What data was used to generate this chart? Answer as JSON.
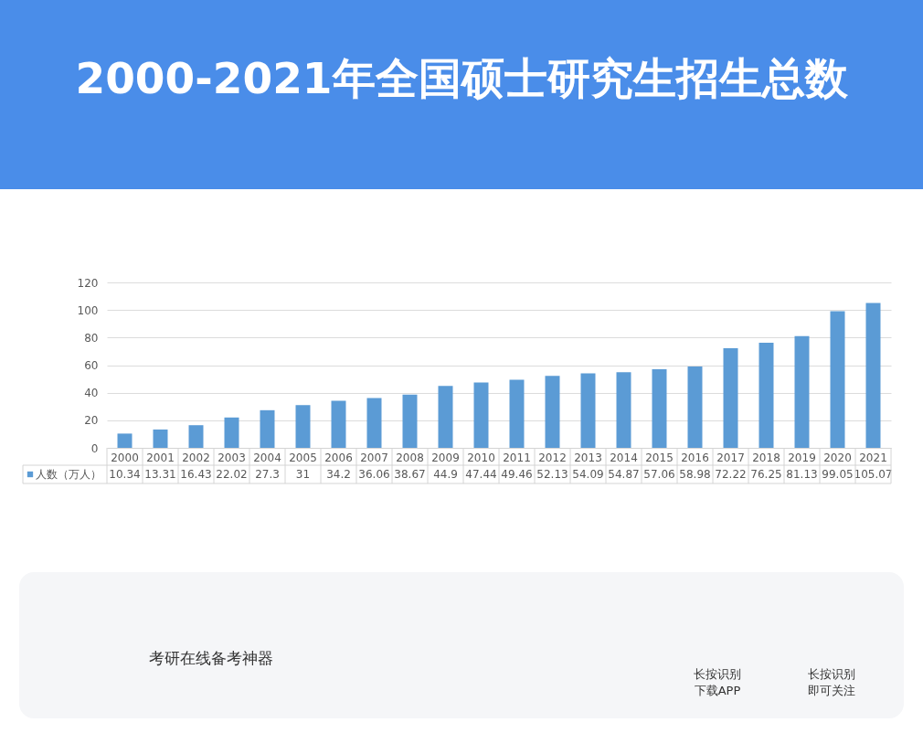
{
  "chart_data": {
    "type": "bar",
    "title": "2000-2021年全国硕士研究生招生总数",
    "categories": [
      "2000",
      "2001",
      "2002",
      "2003",
      "2004",
      "2005",
      "2006",
      "2007",
      "2008",
      "2009",
      "2010",
      "2011",
      "2012",
      "2013",
      "2014",
      "2015",
      "2016",
      "2017",
      "2018",
      "2019",
      "2020",
      "2021"
    ],
    "series": [
      {
        "name": "人数（万人）",
        "color": "#5b9bd5",
        "values": [
          10.34,
          13.31,
          16.43,
          22.02,
          27.3,
          31,
          34.2,
          36.06,
          38.67,
          44.9,
          47.44,
          49.46,
          52.13,
          54.09,
          54.87,
          57.06,
          58.98,
          72.22,
          76.25,
          81.13,
          99.05,
          105.07
        ]
      }
    ],
    "ylim": [
      0,
      120
    ],
    "yticks": [
      0,
      20,
      40,
      60,
      80,
      100,
      120
    ],
    "grid": "y",
    "legend": "bottom",
    "data_labels": true,
    "annotations": [
      "考研在线备考神器",
      "长按识别",
      "下载APP",
      "长按识别",
      "即可关注"
    ]
  }
}
